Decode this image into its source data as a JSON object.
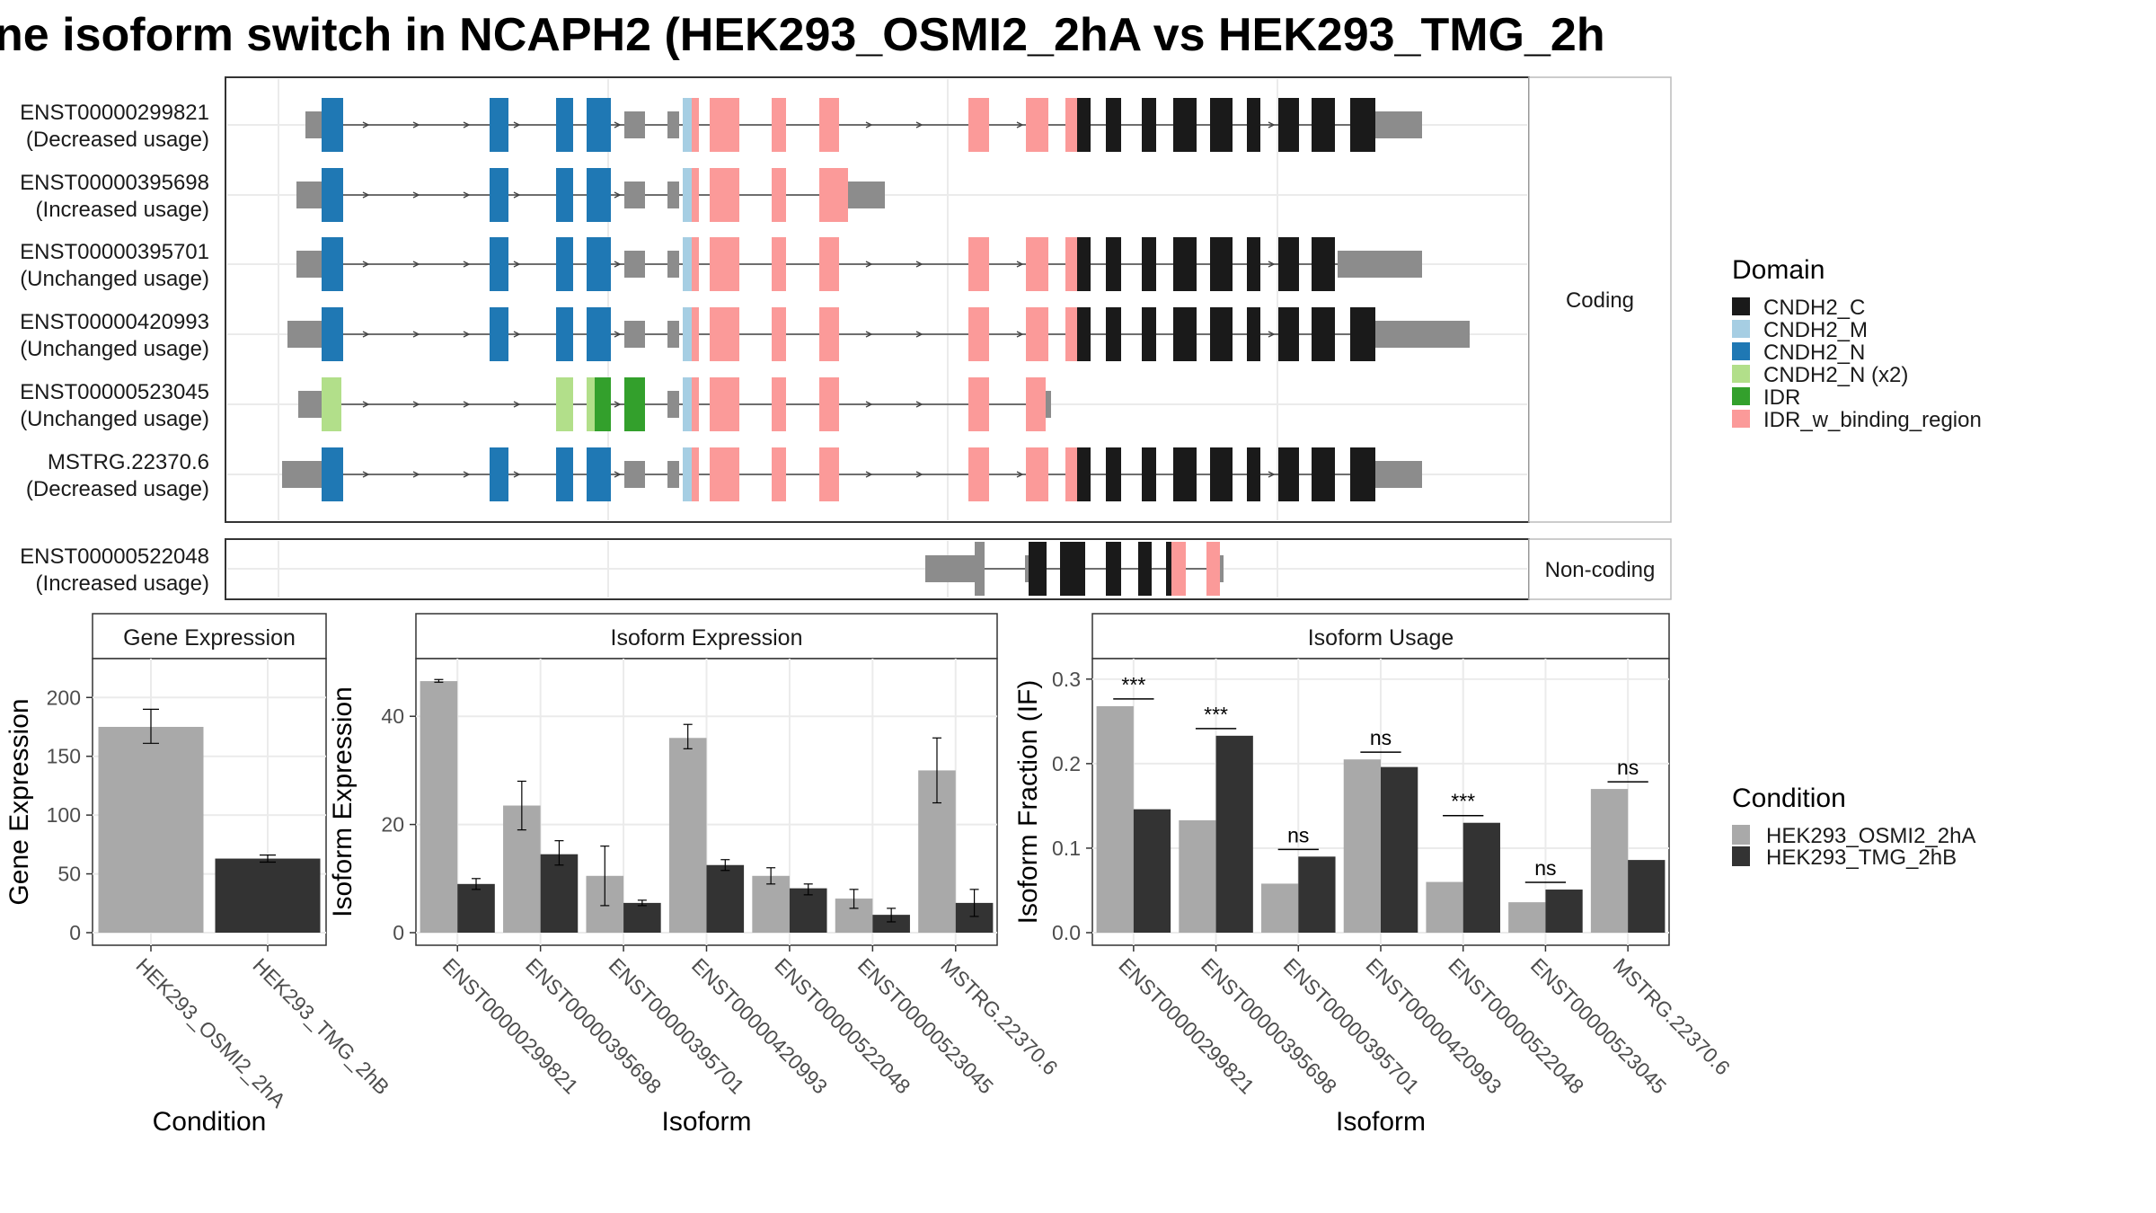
{
  "title": "ne isoform switch in NCAPH2 (HEK293_OSMI2_2hA vs HEK293_TMG_2h",
  "colors": {
    "CNDH2_C": "#1a1a1a",
    "CNDH2_M": "#a6cee3",
    "CNDH2_N": "#1f78b4",
    "CNDH2_N (x2)": "#b2df8a",
    "IDR": "#33a02c",
    "IDR_w_binding_region": "#fb9a99",
    "utr": "#8c8c8c",
    "cond1": "#a9a9a9",
    "cond2": "#333333"
  },
  "structure": {
    "coding_label": "Coding",
    "noncoding_label": "Non-coding",
    "transcripts": [
      {
        "id": "ENST00000299821",
        "usage": "(Decreased usage)"
      },
      {
        "id": "ENST00000395698",
        "usage": "(Increased usage)"
      },
      {
        "id": "ENST00000395701",
        "usage": "(Unchanged usage)"
      },
      {
        "id": "ENST00000420993",
        "usage": "(Unchanged usage)"
      },
      {
        "id": "ENST00000523045",
        "usage": "(Unchanged usage)"
      },
      {
        "id": "MSTRG.22370.6",
        "usage": "(Decreased usage)"
      }
    ],
    "noncoding": [
      {
        "id": "ENST00000522048",
        "usage": "(Increased usage)"
      }
    ]
  },
  "domain_legend": {
    "title": "Domain",
    "items": [
      "CNDH2_C",
      "CNDH2_M",
      "CNDH2_N",
      "CNDH2_N (x2)",
      "IDR",
      "IDR_w_binding_region"
    ]
  },
  "condition_legend": {
    "title": "Condition",
    "items": [
      "HEK293_OSMI2_2hA",
      "HEK293_TMG_2hB"
    ]
  },
  "chart_data": [
    {
      "type": "bar",
      "title": "Gene Expression",
      "xlabel": "Condition",
      "ylabel": "Gene Expression",
      "ylim": [
        0,
        230
      ],
      "yticks": [
        "0",
        "50",
        "100",
        "150",
        "200"
      ],
      "categories": [
        "HEK293_OSMI2_2hA",
        "HEK293_TMG_2hB"
      ],
      "values": [
        175,
        63
      ],
      "errors": [
        [
          161,
          190
        ],
        [
          60,
          66
        ]
      ]
    },
    {
      "type": "bar",
      "title": "Isoform Expression",
      "xlabel": "Isoform",
      "ylabel": "Isoform Expression",
      "ylim": [
        0,
        50
      ],
      "yticks": [
        "0",
        "20",
        "40"
      ],
      "categories": [
        "ENST00000299821",
        "ENST00000395698",
        "ENST00000395701",
        "ENST00000420993",
        "ENST00000522048",
        "ENST00000523045",
        "MSTRG.22370.6"
      ],
      "series": [
        {
          "name": "HEK293_OSMI2_2hA",
          "values": [
            46.5,
            23.5,
            10.5,
            36,
            10.5,
            6.3,
            30
          ],
          "errors": [
            [
              46.3,
              46.8
            ],
            [
              19,
              28
            ],
            [
              5,
              16
            ],
            [
              34,
              38.5
            ],
            [
              9,
              12
            ],
            [
              4.5,
              8
            ],
            [
              24,
              36
            ]
          ]
        },
        {
          "name": "HEK293_TMG_2hB",
          "values": [
            9,
            14.5,
            5.5,
            12.5,
            8.2,
            3.3,
            5.5
          ],
          "errors": [
            [
              8,
              10
            ],
            [
              12.5,
              17
            ],
            [
              5,
              6
            ],
            [
              11.5,
              13.5
            ],
            [
              7,
              9
            ],
            [
              2,
              4.5
            ],
            [
              3,
              8
            ]
          ]
        }
      ]
    },
    {
      "type": "bar",
      "title": "Isoform Usage",
      "xlabel": "Isoform",
      "ylabel": "Isoform Fraction (IF)",
      "ylim": [
        0,
        0.32
      ],
      "yticks": [
        "0.0",
        "0.1",
        "0.2",
        "0.3"
      ],
      "categories": [
        "ENST00000299821",
        "ENST00000395698",
        "ENST00000395701",
        "ENST00000420993",
        "ENST00000522048",
        "ENST00000523045",
        "MSTRG.22370.6"
      ],
      "series": [
        {
          "name": "HEK293_OSMI2_2hA",
          "values": [
            0.268,
            0.133,
            0.058,
            0.205,
            0.06,
            0.036,
            0.17
          ]
        },
        {
          "name": "HEK293_TMG_2hB",
          "values": [
            0.146,
            0.233,
            0.09,
            0.196,
            0.13,
            0.051,
            0.086
          ]
        }
      ],
      "significance": [
        "***",
        "***",
        "ns",
        "ns",
        "***",
        "ns",
        "ns"
      ]
    }
  ]
}
